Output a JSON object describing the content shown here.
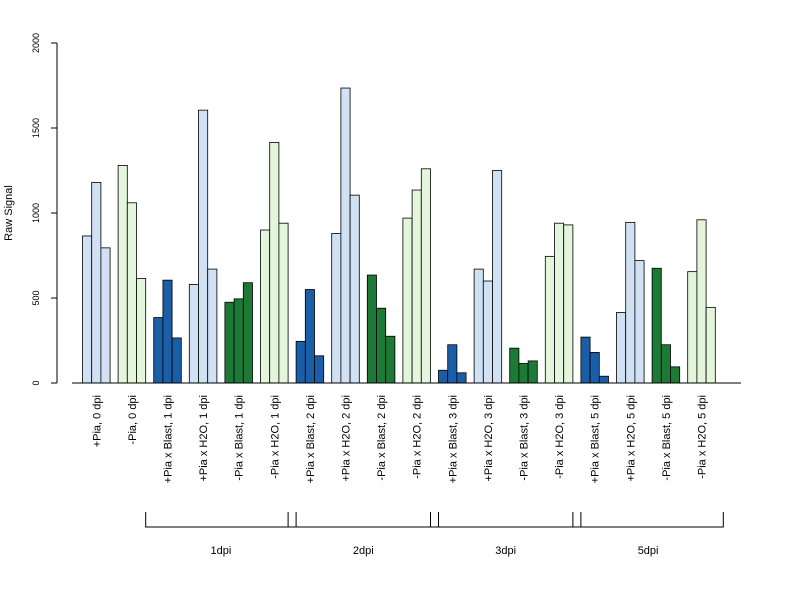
{
  "chart_data": {
    "type": "bar",
    "ylabel": "Raw Signal",
    "ylim": [
      0,
      2000
    ],
    "yticks": [
      0,
      500,
      1000,
      1500,
      2000
    ],
    "grid": false,
    "categories": [
      "+Pia, 0 dpi",
      "-Pia, 0 dpi",
      "+Pia x Blast, 1 dpi",
      "+Pia x H2O, 1 dpi",
      "-Pia x Blast, 1 dpi",
      "-Pia x H2O, 1 dpi",
      "+Pia x Blast, 2 dpi",
      "+Pia x H2O, 2 dpi",
      "-Pia x Blast, 2 dpi",
      "-Pia x H2O, 2 dpi",
      "+Pia x Blast, 3 dpi",
      "+Pia x H2O, 3 dpi",
      "-Pia x Blast, 3 dpi",
      "-Pia x H2O, 3 dpi",
      "+Pia x Blast, 5 dpi",
      "+Pia x H2O, 5 dpi",
      "-Pia x Blast, 5 dpi",
      "-Pia x H2O, 5 dpi"
    ],
    "values": [
      [
        865,
        1180,
        795
      ],
      [
        1280,
        1060,
        615
      ],
      [
        385,
        605,
        265
      ],
      [
        580,
        1605,
        670
      ],
      [
        475,
        495,
        590
      ],
      [
        900,
        1415,
        940
      ],
      [
        245,
        550,
        160
      ],
      [
        880,
        1735,
        1105
      ],
      [
        635,
        440,
        275
      ],
      [
        970,
        1135,
        1260
      ],
      [
        75,
        225,
        60
      ],
      [
        670,
        600,
        1250
      ],
      [
        205,
        115,
        130
      ],
      [
        745,
        940,
        930
      ],
      [
        270,
        180,
        40
      ],
      [
        415,
        945,
        720
      ],
      [
        675,
        225,
        95
      ],
      [
        655,
        960,
        445
      ]
    ],
    "bar_colors": [
      "#cfe1f3",
      "#e3f5db",
      "#1a5ea8",
      "#cfe1f3",
      "#1d7a36",
      "#e3f5db",
      "#1a5ea8",
      "#cfe1f3",
      "#1d7a36",
      "#e3f5db",
      "#1a5ea8",
      "#cfe1f3",
      "#1d7a36",
      "#e3f5db",
      "#1a5ea8",
      "#cfe1f3",
      "#1d7a36",
      "#e3f5db"
    ],
    "groups": [
      {
        "label": "1dpi",
        "from": 2,
        "to": 5
      },
      {
        "label": "2dpi",
        "from": 6,
        "to": 9
      },
      {
        "label": "3dpi",
        "from": 10,
        "to": 13
      },
      {
        "label": "5dpi",
        "from": 14,
        "to": 17
      }
    ]
  }
}
